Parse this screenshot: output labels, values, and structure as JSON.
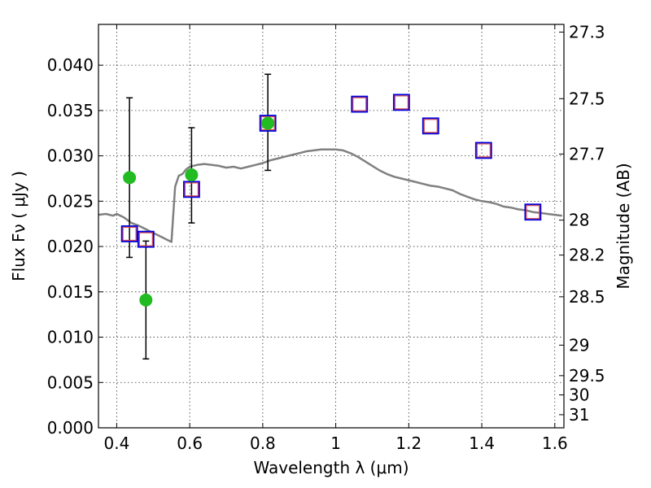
{
  "chart_data": {
    "type": "scatter",
    "xlabel": "Wavelength  λ (μm)",
    "ylabel": "Flux  Fν  ( μJy )",
    "ylabel_right": "Magnitude (AB)",
    "xlim": [
      0.35,
      1.625
    ],
    "ylim": [
      0,
      0.0445
    ],
    "grid": true,
    "x_ticks": [
      {
        "value": 0.4,
        "label": "0.4"
      },
      {
        "value": 0.6,
        "label": "0.6"
      },
      {
        "value": 0.8,
        "label": "0.8"
      },
      {
        "value": 1.0,
        "label": "1"
      },
      {
        "value": 1.2,
        "label": "1.2"
      },
      {
        "value": 1.4,
        "label": "1.4"
      },
      {
        "value": 1.6,
        "label": "1.6"
      }
    ],
    "y_ticks": [
      {
        "value": 0.0,
        "label": "0.000"
      },
      {
        "value": 0.005,
        "label": "0.005"
      },
      {
        "value": 0.01,
        "label": "0.010"
      },
      {
        "value": 0.015,
        "label": "0.015"
      },
      {
        "value": 0.02,
        "label": "0.020"
      },
      {
        "value": 0.025,
        "label": "0.025"
      },
      {
        "value": 0.03,
        "label": "0.030"
      },
      {
        "value": 0.035,
        "label": "0.035"
      },
      {
        "value": 0.04,
        "label": "0.040"
      }
    ],
    "mag_ticks": [
      {
        "value": 27.3,
        "label": "27.3"
      },
      {
        "value": 27.5,
        "label": "27.5"
      },
      {
        "value": 27.7,
        "label": "27.7"
      },
      {
        "value": 28.0,
        "label": "28"
      },
      {
        "value": 28.2,
        "label": "28.2"
      },
      {
        "value": 28.5,
        "label": "28.5"
      },
      {
        "value": 29.0,
        "label": "29"
      },
      {
        "value": 29.5,
        "label": "29.5"
      },
      {
        "value": 30.0,
        "label": "30"
      },
      {
        "value": 31.0,
        "label": "31"
      }
    ],
    "colors": {
      "spectrum": "#808080",
      "observed": "#22bb22",
      "model_square": "#0000dd",
      "model_square_inner": "#dd4444",
      "errorbar": "#000000"
    },
    "series": [
      {
        "kind": "model_spectrum",
        "x": [
          0.35,
          0.37,
          0.39,
          0.4,
          0.42,
          0.44,
          0.46,
          0.48,
          0.5,
          0.52,
          0.54,
          0.55,
          0.56,
          0.57,
          0.58,
          0.59,
          0.6,
          0.62,
          0.64,
          0.66,
          0.68,
          0.7,
          0.72,
          0.74,
          0.76,
          0.78,
          0.8,
          0.82,
          0.84,
          0.86,
          0.88,
          0.9,
          0.92,
          0.94,
          0.96,
          0.98,
          1.0,
          1.02,
          1.04,
          1.06,
          1.08,
          1.1,
          1.12,
          1.14,
          1.16,
          1.18,
          1.2,
          1.22,
          1.24,
          1.26,
          1.28,
          1.3,
          1.32,
          1.34,
          1.36,
          1.38,
          1.4,
          1.42,
          1.44,
          1.46,
          1.48,
          1.5,
          1.52,
          1.54,
          1.56,
          1.58,
          1.6,
          1.62
        ],
        "y": [
          0.0235,
          0.0236,
          0.0234,
          0.0236,
          0.0232,
          0.0226,
          0.0223,
          0.0219,
          0.0215,
          0.0211,
          0.0207,
          0.0205,
          0.0266,
          0.0278,
          0.028,
          0.0285,
          0.0288,
          0.029,
          0.0291,
          0.029,
          0.0289,
          0.0287,
          0.0288,
          0.0286,
          0.0288,
          0.029,
          0.0292,
          0.0295,
          0.0297,
          0.0299,
          0.0301,
          0.0303,
          0.0305,
          0.0306,
          0.0307,
          0.0307,
          0.0307,
          0.0306,
          0.0303,
          0.0299,
          0.0294,
          0.0289,
          0.0284,
          0.028,
          0.0277,
          0.0275,
          0.0273,
          0.0271,
          0.0269,
          0.0267,
          0.0266,
          0.0264,
          0.0262,
          0.0258,
          0.0255,
          0.0252,
          0.025,
          0.0249,
          0.0247,
          0.0244,
          0.0243,
          0.0241,
          0.024,
          0.0238,
          0.0237,
          0.0236,
          0.0235,
          0.0234
        ]
      },
      {
        "kind": "model_photometry",
        "x": [
          0.435,
          0.48,
          0.605,
          0.814,
          1.065,
          1.18,
          1.26,
          1.405,
          1.54
        ],
        "y": [
          0.0214,
          0.0208,
          0.0263,
          0.0336,
          0.0357,
          0.0359,
          0.0333,
          0.0306,
          0.0238
        ]
      },
      {
        "kind": "observed_photometry",
        "x": [
          0.435,
          0.48,
          0.605,
          0.814
        ],
        "y": [
          0.0276,
          0.0141,
          0.0279,
          0.0336
        ],
        "yerr_low": [
          0.0188,
          0.0076,
          0.0226,
          0.0284
        ],
        "yerr_high": [
          0.0364,
          0.0206,
          0.0331,
          0.039
        ]
      }
    ]
  }
}
